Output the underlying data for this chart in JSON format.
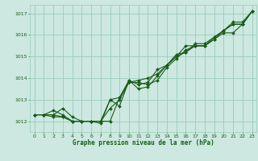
{
  "title": "",
  "xlabel": "Graphe pression niveau de la mer (hPa)",
  "bg_color": "#cce8e0",
  "grid_color": "#99ccbb",
  "line_color": "#1a5c1a",
  "marker_color": "#1a5c1a",
  "xlim": [
    -0.5,
    23.5
  ],
  "ylim": [
    1011.5,
    1017.4
  ],
  "yticks": [
    1012,
    1013,
    1014,
    1015,
    1016,
    1017
  ],
  "xticks": [
    0,
    1,
    2,
    3,
    4,
    5,
    6,
    7,
    8,
    9,
    10,
    11,
    12,
    13,
    14,
    15,
    16,
    17,
    18,
    19,
    20,
    21,
    22,
    23
  ],
  "series": [
    [
      1012.3,
      1012.3,
      1012.2,
      1012.2,
      1012.0,
      1012.0,
      1012.0,
      1011.9,
      1013.0,
      1012.7,
      1013.9,
      1013.5,
      1013.6,
      1014.1,
      1014.6,
      1015.0,
      1015.2,
      1015.5,
      1015.5,
      1015.8,
      1016.2,
      1016.6,
      1016.6,
      1017.1
    ],
    [
      1012.3,
      1012.3,
      1012.3,
      1012.2,
      1012.0,
      1012.0,
      1012.0,
      1012.0,
      1012.6,
      1013.0,
      1013.8,
      1013.8,
      1013.7,
      1013.9,
      1014.5,
      1014.9,
      1015.3,
      1015.5,
      1015.5,
      1015.8,
      1016.1,
      1016.1,
      1016.5,
      1017.1
    ],
    [
      1012.3,
      1012.3,
      1012.3,
      1012.6,
      1012.2,
      1012.0,
      1012.0,
      1012.0,
      1012.0,
      1013.1,
      1013.9,
      1013.7,
      1013.8,
      1014.4,
      1014.6,
      1015.0,
      1015.5,
      1015.5,
      1015.5,
      1015.9,
      1016.2,
      1016.5,
      1016.5,
      1017.1
    ],
    [
      1012.3,
      1012.3,
      1012.5,
      1012.3,
      1012.0,
      1012.0,
      1012.0,
      1012.0,
      1013.0,
      1013.1,
      1013.8,
      1013.9,
      1014.0,
      1014.2,
      1014.6,
      1015.1,
      1015.2,
      1015.6,
      1015.6,
      1015.9,
      1016.2,
      1016.5,
      1016.5,
      1017.1
    ]
  ]
}
